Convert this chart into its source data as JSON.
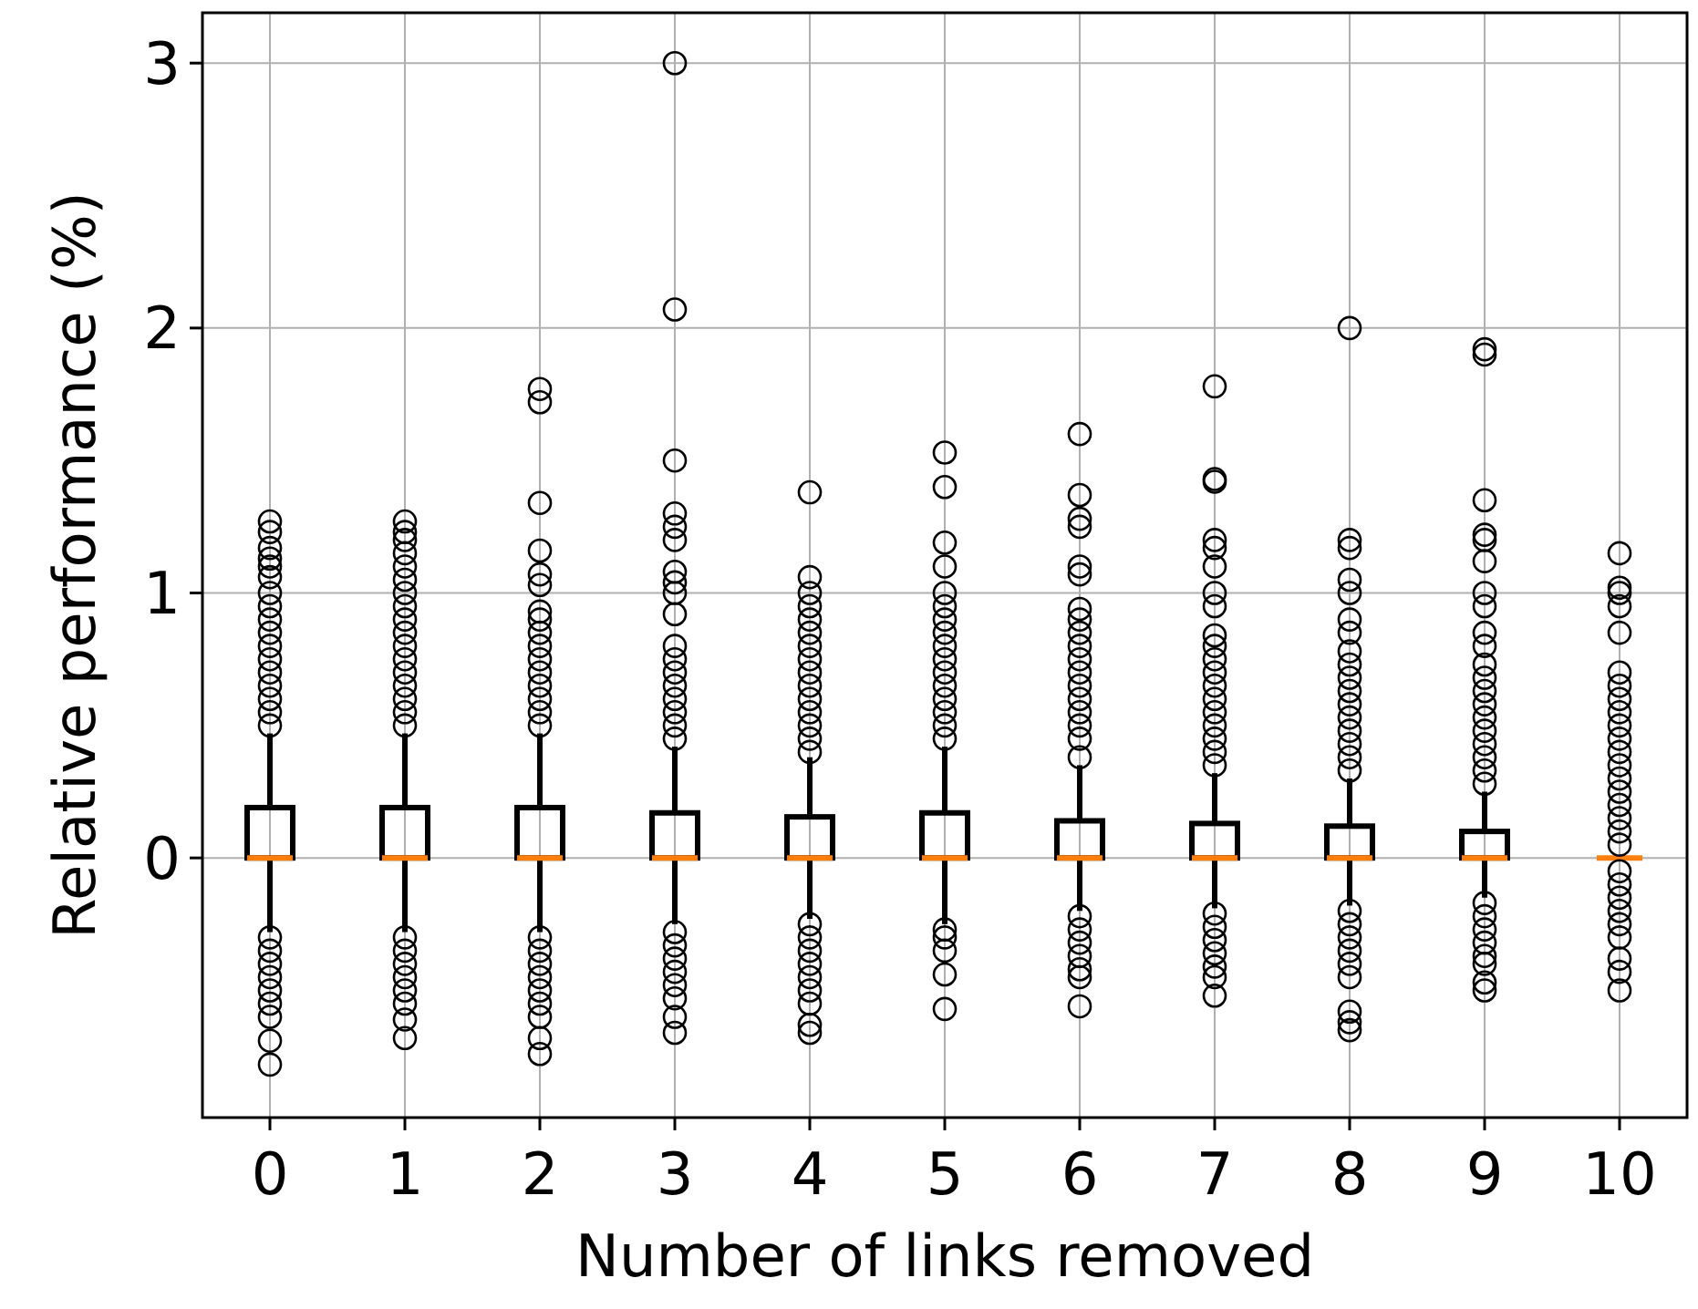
{
  "chart_data": {
    "type": "box",
    "xlabel": "Number of links removed",
    "ylabel": "Relative performance (%)",
    "categories": [
      "0",
      "1",
      "2",
      "3",
      "4",
      "5",
      "6",
      "7",
      "8",
      "9",
      "10"
    ],
    "ylim": [
      -0.98,
      3.19
    ],
    "yticks": [
      0,
      1,
      2,
      3
    ],
    "grid": true,
    "boxes": [
      {
        "low": -0.28,
        "q1": 0,
        "median": 0,
        "q3": 0.19,
        "high": 0.47,
        "outliers": [
          0.5,
          0.55,
          0.6,
          0.65,
          0.7,
          0.75,
          0.8,
          0.85,
          0.9,
          0.95,
          1.0,
          1.06,
          1.1,
          1.13,
          1.17,
          1.23,
          1.27,
          -0.3,
          -0.35,
          -0.4,
          -0.45,
          -0.5,
          -0.55,
          -0.6,
          -0.69,
          -0.78
        ]
      },
      {
        "low": -0.28,
        "q1": 0,
        "median": 0,
        "q3": 0.19,
        "high": 0.47,
        "outliers": [
          0.5,
          0.55,
          0.6,
          0.65,
          0.7,
          0.75,
          0.8,
          0.85,
          0.9,
          0.95,
          1.0,
          1.05,
          1.1,
          1.15,
          1.2,
          1.23,
          1.27,
          -0.3,
          -0.35,
          -0.4,
          -0.45,
          -0.5,
          -0.55,
          -0.61,
          -0.68
        ]
      },
      {
        "low": -0.28,
        "q1": 0,
        "median": 0,
        "q3": 0.19,
        "high": 0.47,
        "outliers": [
          0.5,
          0.55,
          0.6,
          0.65,
          0.7,
          0.75,
          0.8,
          0.85,
          0.9,
          0.93,
          1.03,
          1.07,
          1.16,
          1.34,
          1.72,
          1.77,
          -0.3,
          -0.35,
          -0.4,
          -0.45,
          -0.5,
          -0.55,
          -0.6,
          -0.68,
          -0.74
        ]
      },
      {
        "low": -0.25,
        "q1": 0,
        "median": 0,
        "q3": 0.17,
        "high": 0.42,
        "outliers": [
          0.45,
          0.5,
          0.55,
          0.6,
          0.65,
          0.7,
          0.75,
          0.8,
          0.92,
          1.0,
          1.04,
          1.08,
          1.2,
          1.25,
          1.3,
          1.5,
          2.07,
          3.0,
          -0.28,
          -0.33,
          -0.38,
          -0.43,
          -0.48,
          -0.53,
          -0.6,
          -0.66
        ]
      },
      {
        "low": -0.23,
        "q1": 0,
        "median": 0,
        "q3": 0.155,
        "high": 0.38,
        "outliers": [
          0.4,
          0.45,
          0.5,
          0.55,
          0.6,
          0.65,
          0.7,
          0.75,
          0.8,
          0.85,
          0.9,
          0.95,
          1.0,
          1.06,
          1.38,
          -0.25,
          -0.3,
          -0.35,
          -0.4,
          -0.45,
          -0.5,
          -0.55,
          -0.63,
          -0.66
        ]
      },
      {
        "low": -0.25,
        "q1": 0,
        "median": 0,
        "q3": 0.17,
        "high": 0.42,
        "outliers": [
          0.45,
          0.5,
          0.55,
          0.6,
          0.65,
          0.7,
          0.75,
          0.8,
          0.85,
          0.9,
          0.95,
          1.0,
          1.1,
          1.19,
          1.4,
          1.53,
          -0.27,
          -0.3,
          -0.35,
          -0.44,
          -0.57
        ]
      },
      {
        "low": -0.2,
        "q1": 0,
        "median": 0,
        "q3": 0.14,
        "high": 0.35,
        "outliers": [
          0.38,
          0.45,
          0.5,
          0.55,
          0.6,
          0.65,
          0.7,
          0.75,
          0.8,
          0.85,
          0.9,
          0.94,
          1.07,
          1.1,
          1.25,
          1.28,
          1.37,
          1.6,
          -0.22,
          -0.27,
          -0.32,
          -0.37,
          -0.42,
          -0.45,
          -0.56
        ]
      },
      {
        "low": -0.19,
        "q1": 0,
        "median": 0,
        "q3": 0.13,
        "high": 0.32,
        "outliers": [
          0.35,
          0.4,
          0.45,
          0.5,
          0.55,
          0.6,
          0.65,
          0.7,
          0.75,
          0.8,
          0.84,
          0.95,
          1.0,
          1.1,
          1.17,
          1.2,
          1.42,
          1.43,
          1.78,
          -0.21,
          -0.26,
          -0.31,
          -0.36,
          -0.41,
          -0.45,
          -0.52
        ]
      },
      {
        "low": -0.18,
        "q1": 0,
        "median": 0,
        "q3": 0.12,
        "high": 0.3,
        "outliers": [
          0.33,
          0.38,
          0.43,
          0.48,
          0.53,
          0.58,
          0.63,
          0.68,
          0.73,
          0.78,
          0.85,
          0.9,
          1.0,
          1.05,
          1.17,
          1.2,
          2.0,
          -0.2,
          -0.25,
          -0.3,
          -0.35,
          -0.4,
          -0.45,
          -0.58,
          -0.62,
          -0.65
        ]
      },
      {
        "low": -0.15,
        "q1": 0,
        "median": 0,
        "q3": 0.1,
        "high": 0.25,
        "outliers": [
          0.28,
          0.33,
          0.38,
          0.43,
          0.48,
          0.53,
          0.58,
          0.63,
          0.68,
          0.73,
          0.8,
          0.85,
          0.95,
          1.0,
          1.12,
          1.2,
          1.22,
          1.35,
          1.9,
          1.92,
          -0.17,
          -0.22,
          -0.27,
          -0.32,
          -0.37,
          -0.4,
          -0.47,
          -0.5
        ]
      },
      {
        "low": 0,
        "q1": 0,
        "median": 0,
        "q3": 0,
        "high": 0,
        "outliers": [
          0.05,
          0.1,
          0.15,
          0.2,
          0.25,
          0.3,
          0.35,
          0.4,
          0.45,
          0.5,
          0.55,
          0.6,
          0.65,
          0.7,
          0.85,
          0.95,
          1.0,
          1.02,
          1.15,
          -0.05,
          -0.1,
          -0.15,
          -0.2,
          -0.25,
          -0.3,
          -0.38,
          -0.43,
          -0.5
        ]
      }
    ]
  }
}
